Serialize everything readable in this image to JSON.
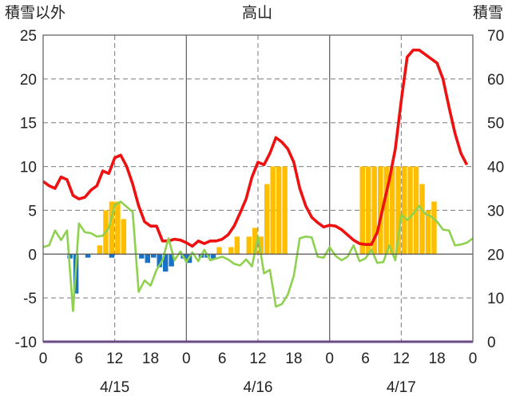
{
  "chart_data": {
    "type": "bar+line",
    "title": "高山",
    "left_axis_title": "積雪以外",
    "right_axis_title": "積雪",
    "left_ylim": [
      -10,
      25
    ],
    "left_ticks": [
      -10,
      -5,
      0,
      5,
      10,
      15,
      20,
      25
    ],
    "right_ylim": [
      0,
      70
    ],
    "right_ticks": [
      0,
      10,
      20,
      30,
      40,
      50,
      60,
      70
    ],
    "x_hours_range": [
      0,
      72
    ],
    "x_tick_hours": [
      0,
      6,
      12,
      18,
      24,
      30,
      36,
      42,
      48,
      54,
      60,
      66,
      72
    ],
    "x_tick_labels": [
      "0",
      "6",
      "12",
      "18",
      "0",
      "6",
      "12",
      "18",
      "0",
      "6",
      "12",
      "18",
      "0"
    ],
    "day_separators_hours": [
      24,
      48
    ],
    "dashed_gridline_hours": [
      12,
      36,
      60
    ],
    "date_labels": [
      {
        "hour": 12,
        "label": "4/15"
      },
      {
        "hour": 36,
        "label": "4/16"
      },
      {
        "hour": 60,
        "label": "4/17"
      }
    ],
    "grid": true,
    "series": [
      {
        "kind": "bar",
        "axis": "left",
        "color": "#ffbf00",
        "points": [
          [
            10,
            1
          ],
          [
            11,
            5
          ],
          [
            12,
            6
          ],
          [
            13,
            6
          ],
          [
            14,
            4
          ],
          [
            30,
            0.8
          ],
          [
            32,
            0.8
          ],
          [
            33,
            2
          ],
          [
            35,
            2
          ],
          [
            36,
            3
          ],
          [
            37,
            2
          ],
          [
            38,
            8
          ],
          [
            39,
            10
          ],
          [
            40,
            10
          ],
          [
            41,
            10
          ],
          [
            54,
            10
          ],
          [
            55,
            10
          ],
          [
            56,
            10
          ],
          [
            57,
            10
          ],
          [
            58,
            10
          ],
          [
            59,
            10
          ],
          [
            60,
            10
          ],
          [
            61,
            10
          ],
          [
            62,
            10
          ],
          [
            63,
            10
          ],
          [
            64,
            8
          ],
          [
            65,
            5
          ],
          [
            66,
            6
          ]
        ]
      },
      {
        "kind": "bar",
        "axis": "left",
        "color": "#1a72c4",
        "points": [
          [
            5,
            -0.5
          ],
          [
            6,
            -4.5
          ],
          [
            8,
            -0.4
          ],
          [
            12,
            -0.4
          ],
          [
            17,
            -0.5
          ],
          [
            18,
            -1
          ],
          [
            19,
            -0.4
          ],
          [
            20,
            -1.5
          ],
          [
            21,
            -2
          ],
          [
            22,
            -1.4
          ],
          [
            24,
            -0.5
          ],
          [
            25,
            -1
          ],
          [
            27,
            -0.4
          ],
          [
            28,
            -0.4
          ],
          [
            29,
            -0.5
          ]
        ]
      },
      {
        "kind": "line",
        "axis": "left",
        "color": "#ee1111",
        "points": [
          [
            0,
            8.3
          ],
          [
            1,
            7.8
          ],
          [
            2,
            7.5
          ],
          [
            3,
            8.8
          ],
          [
            4,
            8.5
          ],
          [
            5,
            6.7
          ],
          [
            6,
            6.3
          ],
          [
            7,
            6.5
          ],
          [
            8,
            7.3
          ],
          [
            9,
            7.8
          ],
          [
            10,
            9.5
          ],
          [
            11,
            9.2
          ],
          [
            12,
            11
          ],
          [
            13,
            11.3
          ],
          [
            14,
            10
          ],
          [
            15,
            8
          ],
          [
            16,
            5.5
          ],
          [
            17,
            3.7
          ],
          [
            18,
            3.2
          ],
          [
            19,
            3.2
          ],
          [
            20,
            1.5
          ],
          [
            21,
            1.5
          ],
          [
            22,
            1.7
          ],
          [
            23,
            1.6
          ],
          [
            24,
            1.3
          ],
          [
            25,
            0.9
          ],
          [
            26,
            1.5
          ],
          [
            27,
            1.2
          ],
          [
            28,
            1.5
          ],
          [
            29,
            1.5
          ],
          [
            30,
            1.7
          ],
          [
            31,
            2.2
          ],
          [
            32,
            3.2
          ],
          [
            33,
            4.7
          ],
          [
            34,
            6.3
          ],
          [
            35,
            8.8
          ],
          [
            36,
            10.5
          ],
          [
            37,
            10.2
          ],
          [
            38,
            11.5
          ],
          [
            39,
            13.3
          ],
          [
            40,
            12.8
          ],
          [
            41,
            12
          ],
          [
            42,
            10.5
          ],
          [
            43,
            7.5
          ],
          [
            44,
            5.5
          ],
          [
            45,
            4.2
          ],
          [
            46,
            3.6
          ],
          [
            47,
            3.1
          ],
          [
            48,
            3.3
          ],
          [
            49,
            3.2
          ],
          [
            50,
            2.8
          ],
          [
            51,
            2.2
          ],
          [
            52,
            1.6
          ],
          [
            53,
            1.2
          ],
          [
            54,
            1.1
          ],
          [
            55,
            1.1
          ],
          [
            56,
            2.5
          ],
          [
            57,
            5.5
          ],
          [
            58,
            8.5
          ],
          [
            59,
            12
          ],
          [
            60,
            17.5
          ],
          [
            61,
            22.5
          ],
          [
            62,
            23.3
          ],
          [
            63,
            23.3
          ],
          [
            64,
            22.8
          ],
          [
            65,
            22.3
          ],
          [
            66,
            21.8
          ],
          [
            67,
            20
          ],
          [
            68,
            16.8
          ],
          [
            69,
            13.8
          ],
          [
            70,
            11.5
          ],
          [
            71,
            10.2
          ]
        ]
      },
      {
        "kind": "line",
        "axis": "left",
        "color": "#8fd14f",
        "points": [
          [
            0,
            0.8
          ],
          [
            1,
            1
          ],
          [
            2,
            2.7
          ],
          [
            3,
            1.6
          ],
          [
            4,
            2.7
          ],
          [
            5,
            -6.5
          ],
          [
            6,
            3.5
          ],
          [
            7,
            2.5
          ],
          [
            8,
            2.4
          ],
          [
            9,
            2
          ],
          [
            10,
            2.1
          ],
          [
            11,
            3
          ],
          [
            12,
            5.6
          ],
          [
            13,
            6
          ],
          [
            14,
            5.4
          ],
          [
            15,
            4.8
          ],
          [
            16,
            -4.3
          ],
          [
            17,
            -3
          ],
          [
            18,
            -3.6
          ],
          [
            19,
            -1.8
          ],
          [
            20,
            -0.7
          ],
          [
            21,
            1.8
          ],
          [
            22,
            -0.7
          ],
          [
            23,
            0.3
          ],
          [
            24,
            -0.9
          ],
          [
            25,
            0.2
          ],
          [
            26,
            -0.8
          ],
          [
            27,
            0.5
          ],
          [
            28,
            -0.7
          ],
          [
            29,
            -0.5
          ],
          [
            30,
            -0.3
          ],
          [
            31,
            -0.6
          ],
          [
            32,
            -1.1
          ],
          [
            33,
            -1.3
          ],
          [
            34,
            -0.6
          ],
          [
            35,
            -1.4
          ],
          [
            36,
            2
          ],
          [
            37,
            -2.2
          ],
          [
            38,
            -1.8
          ],
          [
            39,
            -6
          ],
          [
            40,
            -5.7
          ],
          [
            41,
            -4.6
          ],
          [
            42,
            -2.5
          ],
          [
            43,
            1.8
          ],
          [
            44,
            2
          ],
          [
            45,
            1.9
          ],
          [
            46,
            -0.3
          ],
          [
            47,
            -0.4
          ],
          [
            48,
            0.8
          ],
          [
            49,
            -0.2
          ],
          [
            50,
            -0.7
          ],
          [
            51,
            -0.3
          ],
          [
            52,
            1
          ],
          [
            53,
            -0.8
          ],
          [
            54,
            -0.5
          ],
          [
            55,
            0.5
          ],
          [
            56,
            -1
          ],
          [
            57,
            -0.9
          ],
          [
            58,
            1
          ],
          [
            59,
            -0.7
          ],
          [
            60,
            4.5
          ],
          [
            61,
            3.9
          ],
          [
            62,
            4.6
          ],
          [
            63,
            5.5
          ],
          [
            64,
            4.6
          ],
          [
            65,
            4.3
          ],
          [
            66,
            3.7
          ],
          [
            67,
            2.8
          ],
          [
            68,
            2.7
          ],
          [
            69,
            1
          ],
          [
            70,
            1.1
          ],
          [
            71,
            1.3
          ],
          [
            72,
            1.8
          ]
        ]
      },
      {
        "kind": "line",
        "axis": "right",
        "color": "#7030a0",
        "points": [
          [
            0,
            0
          ],
          [
            72,
            0
          ]
        ]
      }
    ]
  }
}
